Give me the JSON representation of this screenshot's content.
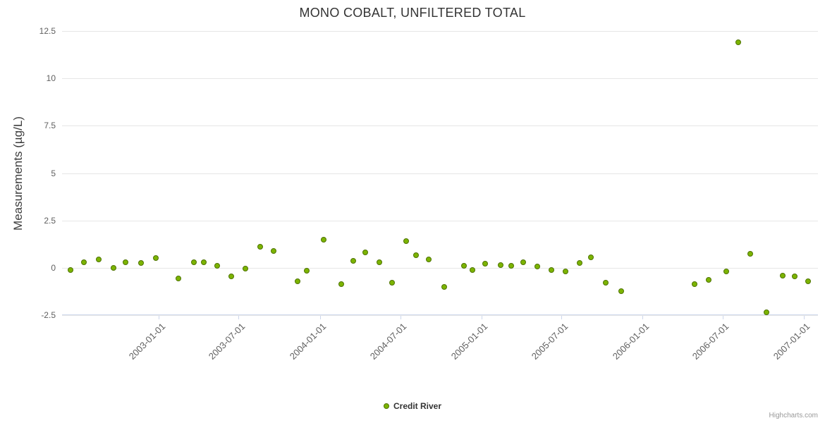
{
  "chart": {
    "title": "MONO COBALT, UNFILTERED TOTAL",
    "y_axis_title": "Measurements (µg/L)",
    "legend_label": "Credit River",
    "credits": "Highcharts.com",
    "colors": {
      "point_fill": "#7cb400",
      "point_stroke": "#4e7300",
      "grid": "#e6e6e6",
      "axis_line": "#ccd6eb",
      "tick_text": "#606060",
      "title_text": "#333333"
    }
  },
  "chart_data": {
    "type": "scatter",
    "title": "MONO COBALT, UNFILTERED TOTAL",
    "xlabel": "",
    "ylabel": "Measurements (µg/L)",
    "ylim": [
      -2.5,
      12.5
    ],
    "xlim": [
      "2002-05-27",
      "2007-02-02"
    ],
    "y_ticks": [
      12.5,
      10,
      7.5,
      5,
      2.5,
      0,
      -2.5
    ],
    "x_ticks": [
      "2003-01-01",
      "2003-07-01",
      "2004-01-01",
      "2004-07-01",
      "2005-01-01",
      "2005-07-01",
      "2006-01-01",
      "2006-07-01",
      "2007-01-01"
    ],
    "grid": "horizontal",
    "legend_position": "bottom",
    "series": [
      {
        "name": "Credit River",
        "points": [
          {
            "x": "2002-06-15",
            "y": -0.1
          },
          {
            "x": "2002-07-15",
            "y": 0.3
          },
          {
            "x": "2002-08-18",
            "y": 0.45
          },
          {
            "x": "2002-09-20",
            "y": 0.0
          },
          {
            "x": "2002-10-18",
            "y": 0.3
          },
          {
            "x": "2002-11-22",
            "y": 0.25
          },
          {
            "x": "2002-12-25",
            "y": 0.5
          },
          {
            "x": "2003-02-14",
            "y": -0.55
          },
          {
            "x": "2003-03-22",
            "y": 0.3
          },
          {
            "x": "2003-04-13",
            "y": 0.3
          },
          {
            "x": "2003-05-13",
            "y": 0.1
          },
          {
            "x": "2003-06-15",
            "y": -0.45
          },
          {
            "x": "2003-07-16",
            "y": -0.05
          },
          {
            "x": "2003-08-18",
            "y": 1.1
          },
          {
            "x": "2003-09-18",
            "y": 0.9
          },
          {
            "x": "2003-11-12",
            "y": -0.7
          },
          {
            "x": "2003-12-02",
            "y": -0.15
          },
          {
            "x": "2004-01-09",
            "y": 1.5
          },
          {
            "x": "2004-02-18",
            "y": -0.85
          },
          {
            "x": "2004-03-17",
            "y": 0.35
          },
          {
            "x": "2004-04-13",
            "y": 0.8
          },
          {
            "x": "2004-05-15",
            "y": 0.3
          },
          {
            "x": "2004-06-13",
            "y": -0.8
          },
          {
            "x": "2004-07-14",
            "y": 1.4
          },
          {
            "x": "2004-08-05",
            "y": 0.65
          },
          {
            "x": "2004-09-03",
            "y": 0.45
          },
          {
            "x": "2004-10-08",
            "y": -1.0
          },
          {
            "x": "2004-11-22",
            "y": 0.1
          },
          {
            "x": "2004-12-11",
            "y": -0.1
          },
          {
            "x": "2005-01-09",
            "y": 0.2
          },
          {
            "x": "2005-02-13",
            "y": 0.15
          },
          {
            "x": "2005-03-10",
            "y": 0.1
          },
          {
            "x": "2005-04-06",
            "y": 0.3
          },
          {
            "x": "2005-05-08",
            "y": 0.05
          },
          {
            "x": "2005-06-09",
            "y": -0.1
          },
          {
            "x": "2005-07-11",
            "y": -0.2
          },
          {
            "x": "2005-08-12",
            "y": 0.25
          },
          {
            "x": "2005-09-05",
            "y": 0.55
          },
          {
            "x": "2005-10-09",
            "y": -0.8
          },
          {
            "x": "2005-11-14",
            "y": -1.25
          },
          {
            "x": "2006-04-29",
            "y": -0.85
          },
          {
            "x": "2006-05-31",
            "y": -0.65
          },
          {
            "x": "2006-07-10",
            "y": -0.2
          },
          {
            "x": "2006-08-06",
            "y": 11.9
          },
          {
            "x": "2006-09-01",
            "y": 0.75
          },
          {
            "x": "2006-10-08",
            "y": -2.35
          },
          {
            "x": "2006-11-14",
            "y": -0.4
          },
          {
            "x": "2006-12-11",
            "y": -0.45
          },
          {
            "x": "2007-01-10",
            "y": -0.7
          }
        ]
      }
    ]
  }
}
